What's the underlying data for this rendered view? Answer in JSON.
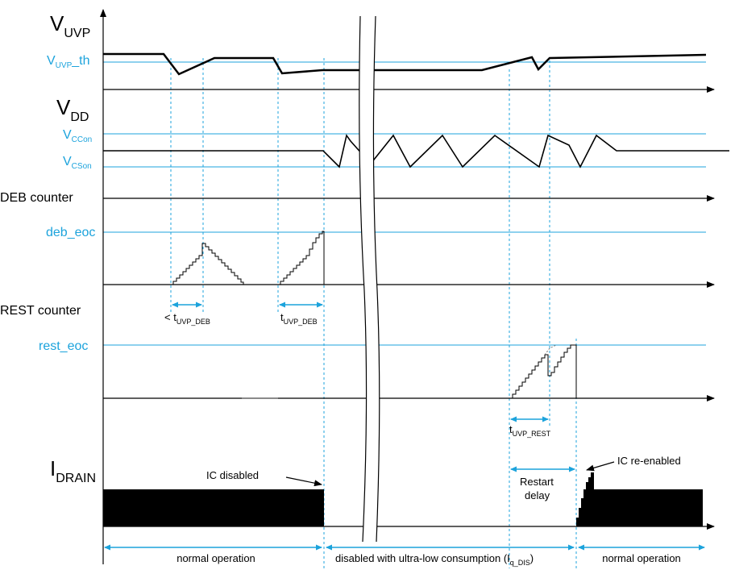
{
  "signals": {
    "vuvp": {
      "main": "V",
      "sub": "UVP"
    },
    "vuvp_th": {
      "main": "V",
      "sub": "UVP",
      "suffix": "_th"
    },
    "vdd": {
      "main": "V",
      "sub": "DD"
    },
    "vccon": {
      "main": "V",
      "sub": "CCon"
    },
    "vcson": {
      "main": "V",
      "sub": "CSon"
    },
    "deb_counter": "DEB counter",
    "deb_eoc": "deb_eoc",
    "rest_counter": "REST counter",
    "rest_eoc": "rest_eoc",
    "idrain": {
      "main": "I",
      "sub": "DRAIN"
    }
  },
  "timings": {
    "deb_short": {
      "prefix": "< t",
      "sub": "UVP_DEB"
    },
    "deb_full": {
      "prefix": "t",
      "sub": "UVP_DEB"
    },
    "rest": {
      "prefix": "t",
      "sub": "UVP_REST"
    }
  },
  "annotations": {
    "ic_disabled": "IC disabled",
    "ic_reenabled": "IC re-enabled",
    "restart_line1": "Restart",
    "restart_line2": "delay"
  },
  "phases": {
    "normal_1": "normal operation",
    "disabled": {
      "text": "disabled with ultra-low consumption (I",
      "sub": "q_DIS",
      "close": ")"
    },
    "normal_2": "normal operation"
  },
  "colors": {
    "accent": "#1ca3dc",
    "trace": "#000000"
  }
}
